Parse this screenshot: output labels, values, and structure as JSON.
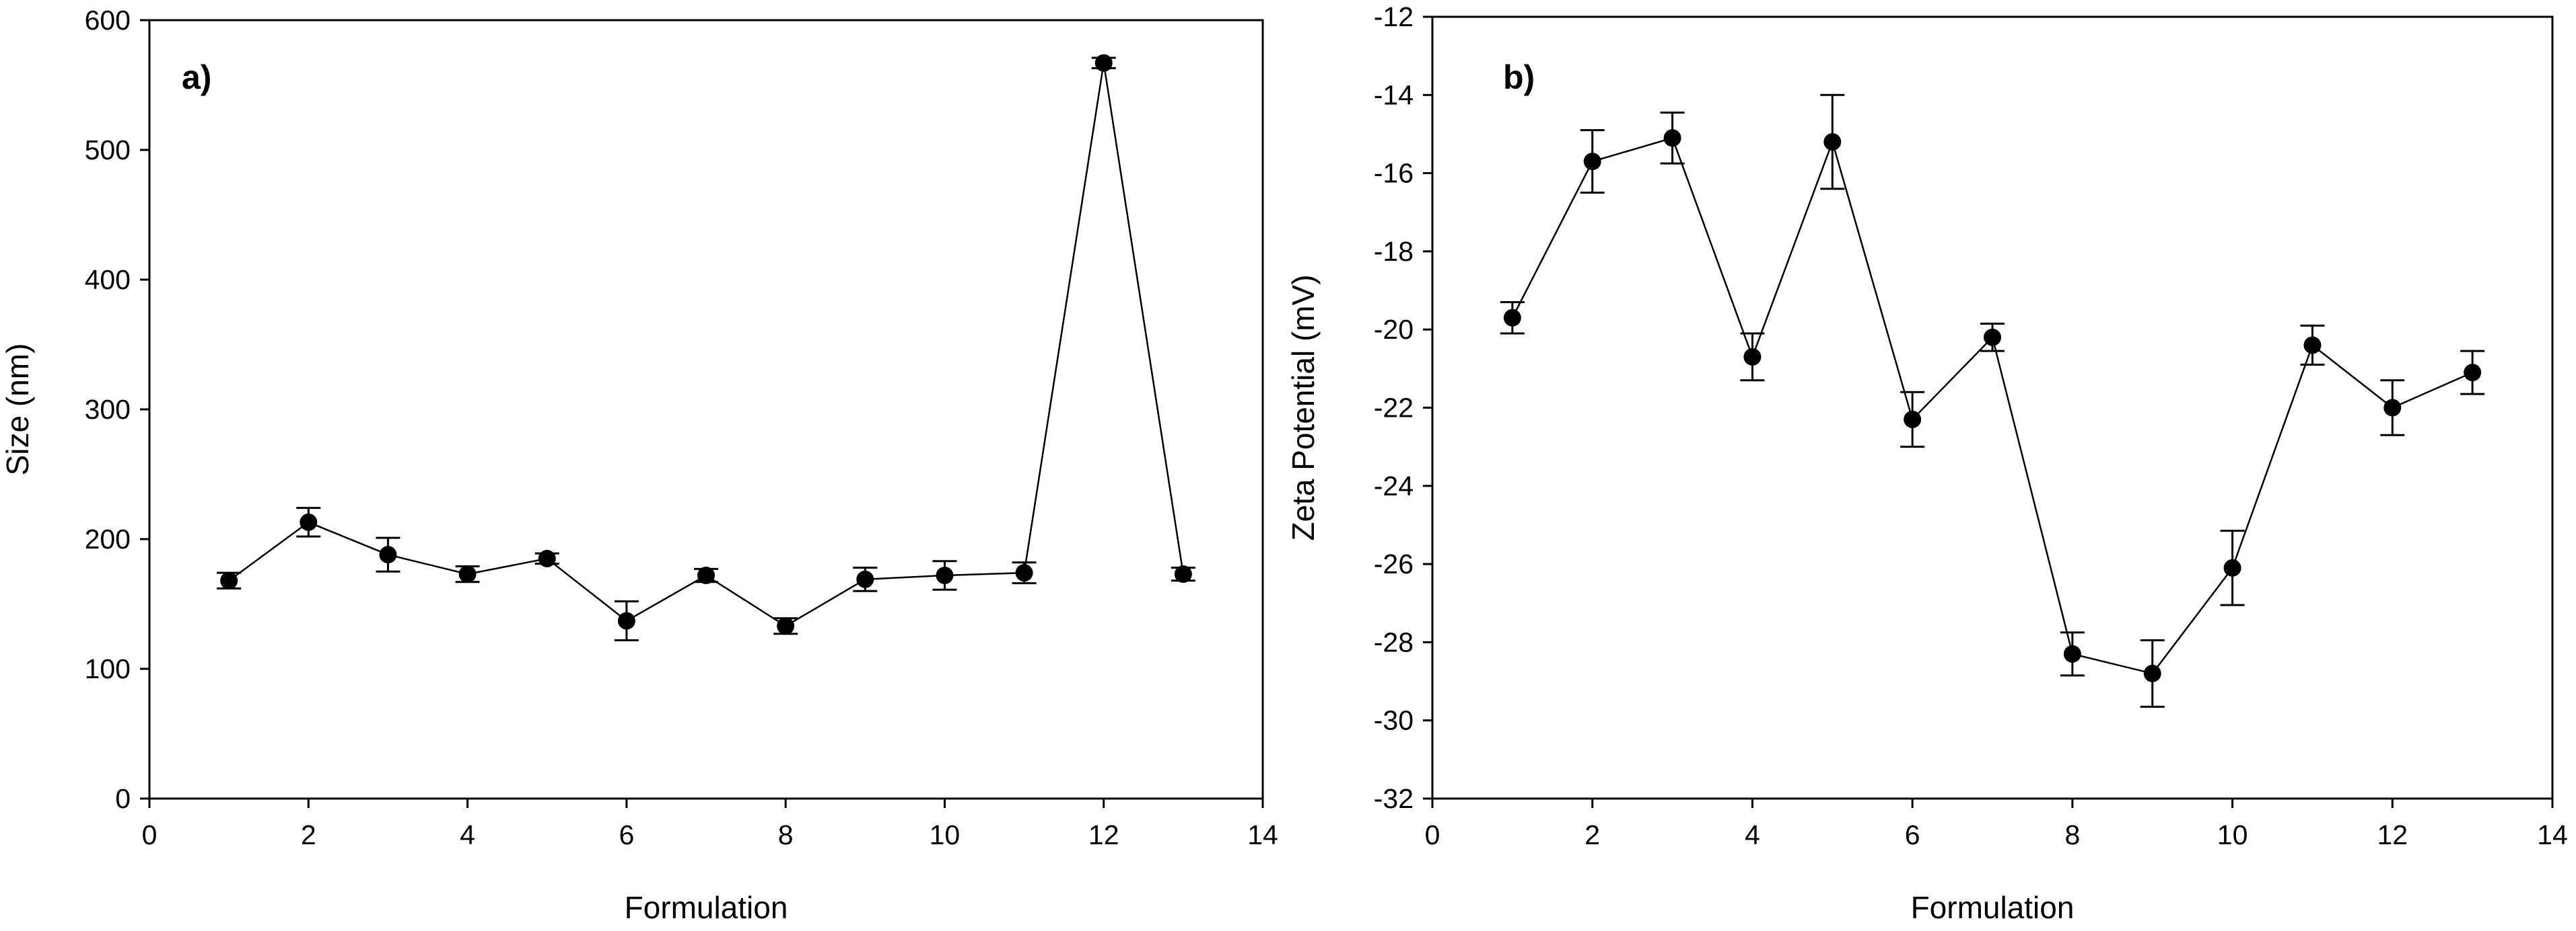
{
  "chart_data": [
    {
      "type": "scatter",
      "panel_label": "a)",
      "title": "",
      "xlabel": "Formulation",
      "ylabel": "Size (nm)",
      "xlim": [
        0,
        14
      ],
      "ylim": [
        0,
        600
      ],
      "xticks": [
        0,
        2,
        4,
        6,
        8,
        10,
        12,
        14
      ],
      "yticks": [
        0,
        100,
        200,
        300,
        400,
        500,
        600
      ],
      "grid": false,
      "series": [
        {
          "name": "Size",
          "x": [
            1,
            2,
            3,
            4,
            5,
            6,
            7,
            8,
            9,
            10,
            11,
            12,
            13
          ],
          "y": [
            168,
            213,
            188,
            173,
            185,
            137,
            172,
            133,
            169,
            172,
            174,
            567,
            173
          ],
          "yerr": [
            6,
            11,
            13,
            6,
            4,
            15,
            5,
            6,
            9,
            11,
            8,
            4,
            5
          ]
        }
      ]
    },
    {
      "type": "scatter",
      "panel_label": "b)",
      "title": "",
      "xlabel": "Formulation",
      "ylabel": "Zeta Potential (mV)",
      "xlim": [
        0,
        14
      ],
      "ylim": [
        -32,
        -12
      ],
      "xticks": [
        0,
        2,
        4,
        6,
        8,
        10,
        12,
        14
      ],
      "yticks": [
        -32,
        -30,
        -28,
        -26,
        -24,
        -22,
        -20,
        -18,
        -16,
        -14,
        -12
      ],
      "grid": false,
      "series": [
        {
          "name": "Zeta Potential",
          "x": [
            1,
            2,
            3,
            4,
            5,
            6,
            7,
            8,
            9,
            10,
            11,
            12,
            13
          ],
          "y": [
            -19.7,
            -15.7,
            -15.1,
            -20.7,
            -15.2,
            -22.3,
            -20.2,
            -28.3,
            -28.8,
            -26.1,
            -20.4,
            -22.0,
            -21.1
          ],
          "yerr": [
            0.4,
            0.8,
            0.65,
            0.6,
            1.2,
            0.7,
            0.35,
            0.55,
            0.85,
            0.95,
            0.5,
            0.7,
            0.55
          ]
        }
      ]
    }
  ]
}
